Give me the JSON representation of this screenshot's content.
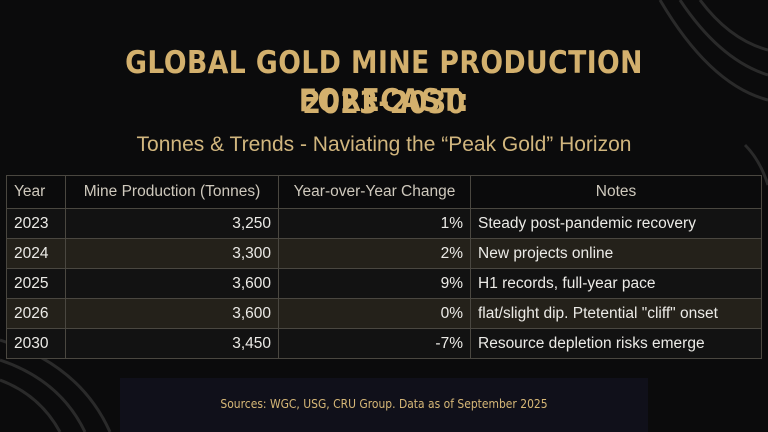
{
  "title_line1": "GLOBAL GOLD MINE PRODUCTION FORECAST:",
  "title_line2": "2023-2030",
  "subtitle": "Tonnes & Trends - Naviating the “Peak Gold” Horizon",
  "source": "Sources: WGC, USG, CRU Group. Data as of September 2025",
  "colors": {
    "gold_title": "#d3b06d",
    "row_dark": "#121212",
    "row_olive": "#24211a"
  },
  "chart_data": {
    "type": "table",
    "columns": [
      "Year",
      "Mine Production (Tonnes)",
      "Year-over-Year Change",
      "Notes"
    ],
    "rows": [
      [
        "2023",
        "3,250",
        "1%",
        "Steady post-pandemic recovery"
      ],
      [
        "2024",
        "3,300",
        "2%",
        "New projects online"
      ],
      [
        "2025",
        "3,600",
        "9%",
        "H1 records, full-year pace"
      ],
      [
        "2026",
        "3,600",
        "0%",
        "flat/slight dip. Ptetential \"cliff\" onset"
      ],
      [
        "2030",
        "3,450",
        "-7%",
        "Resource depletion risks emerge"
      ]
    ]
  }
}
